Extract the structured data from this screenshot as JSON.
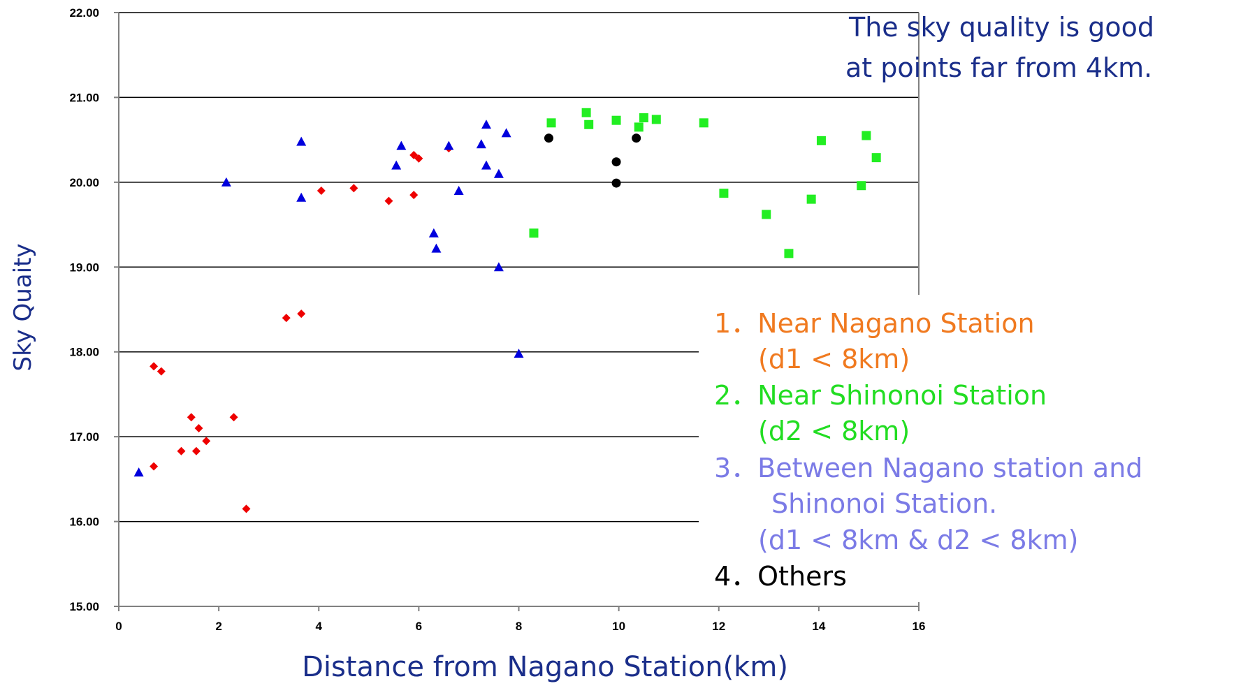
{
  "chart_data": {
    "type": "scatter",
    "title": "",
    "xlabel": "Distance from Nagano Station(km)",
    "ylabel": "Sky Quaity",
    "xlim": [
      0,
      16
    ],
    "ylim": [
      15,
      22
    ],
    "x_ticks": [
      "0",
      "2",
      "4",
      "6",
      "8",
      "10",
      "12",
      "14",
      "16"
    ],
    "y_ticks": [
      "15.00",
      "16.00",
      "17.00",
      "18.00",
      "19.00",
      "20.00",
      "21.00",
      "22.00"
    ],
    "grid": "horizontal",
    "annotation": [
      "The sky quality is good",
      "at points far from 4km."
    ],
    "annotation_color": "#1a2e8a",
    "axis_label_color": "#1a2e8a",
    "legend_placement": "right",
    "legend": [
      {
        "lines": [
          "1．Near Nagano  Station",
          "(d1 < 8km)"
        ],
        "color": "#f07a20"
      },
      {
        "lines": [
          "2．Near Shinonoi Station",
          "(d2 < 8km)"
        ],
        "color": "#22dd22"
      },
      {
        "lines": [
          "3．Between Nagano station and",
          "Shinonoi Station.",
          "(d1 < 8km & d2 < 8km)"
        ],
        "color": "#7b7be6"
      },
      {
        "lines": [
          "4．Others"
        ],
        "color": "#000000"
      }
    ],
    "series": [
      {
        "marker": "diamond",
        "color": "#ee0000",
        "points": [
          [
            0.7,
            17.83
          ],
          [
            0.85,
            17.77
          ],
          [
            0.7,
            16.65
          ],
          [
            1.25,
            16.83
          ],
          [
            1.45,
            17.23
          ],
          [
            1.55,
            16.83
          ],
          [
            1.6,
            17.1
          ],
          [
            1.75,
            16.95
          ],
          [
            2.3,
            17.23
          ],
          [
            2.55,
            16.15
          ],
          [
            3.35,
            18.4
          ],
          [
            3.65,
            18.45
          ],
          [
            4.05,
            19.9
          ],
          [
            4.7,
            19.93
          ],
          [
            5.4,
            19.78
          ],
          [
            5.9,
            19.85
          ],
          [
            5.9,
            20.32
          ],
          [
            6.0,
            20.28
          ],
          [
            6.6,
            20.4
          ]
        ]
      },
      {
        "marker": "triangle",
        "color": "#0000dd",
        "points": [
          [
            0.4,
            16.58
          ],
          [
            2.15,
            20.0
          ],
          [
            3.65,
            20.48
          ],
          [
            3.65,
            19.82
          ],
          [
            5.55,
            20.2
          ],
          [
            5.65,
            20.43
          ],
          [
            6.3,
            19.4
          ],
          [
            6.35,
            19.22
          ],
          [
            6.6,
            20.43
          ],
          [
            6.8,
            19.9
          ],
          [
            7.25,
            20.45
          ],
          [
            7.35,
            20.68
          ],
          [
            7.35,
            20.2
          ],
          [
            7.6,
            20.1
          ],
          [
            7.6,
            19.0
          ],
          [
            7.75,
            20.58
          ],
          [
            8.0,
            17.98
          ]
        ]
      },
      {
        "marker": "square",
        "color": "#22ee22",
        "points": [
          [
            8.3,
            19.4
          ],
          [
            8.65,
            20.7
          ],
          [
            9.35,
            20.82
          ],
          [
            9.4,
            20.68
          ],
          [
            9.95,
            20.73
          ],
          [
            10.4,
            20.65
          ],
          [
            10.5,
            20.76
          ],
          [
            10.75,
            20.74
          ],
          [
            11.7,
            20.7
          ],
          [
            12.1,
            19.87
          ],
          [
            12.95,
            19.62
          ],
          [
            13.4,
            19.16
          ],
          [
            13.85,
            19.8
          ],
          [
            14.05,
            20.49
          ],
          [
            14.85,
            19.96
          ],
          [
            14.95,
            20.55
          ],
          [
            15.15,
            20.29
          ]
        ]
      },
      {
        "marker": "circle",
        "color": "#000000",
        "points": [
          [
            8.6,
            20.52
          ],
          [
            9.95,
            20.24
          ],
          [
            9.95,
            19.99
          ],
          [
            10.35,
            20.52
          ]
        ]
      }
    ]
  }
}
